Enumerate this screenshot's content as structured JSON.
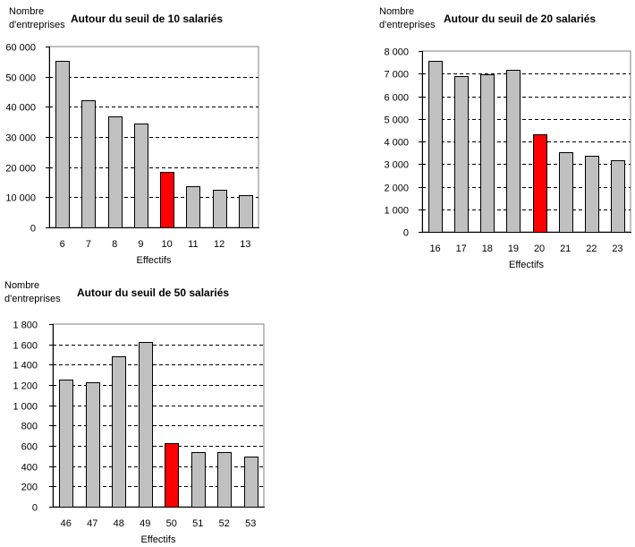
{
  "chart_data": [
    {
      "type": "bar",
      "title": "Autour du seuil de 10 salariés",
      "ylabel": "Nombre d'entreprises",
      "ylabel_lines": [
        "Nombre",
        "d'entreprises"
      ],
      "xlabel": "Effectifs",
      "categories": [
        "6",
        "7",
        "8",
        "9",
        "10",
        "11",
        "12",
        "13"
      ],
      "values": [
        55200,
        42200,
        36800,
        34400,
        18400,
        13600,
        12400,
        10600
      ],
      "highlight_index": 4,
      "ylim": [
        0,
        60000
      ],
      "yticks": [
        0,
        10000,
        20000,
        30000,
        40000,
        50000,
        60000
      ],
      "ytick_labels": [
        "0",
        "10 000",
        "20 000",
        "30 000",
        "40 000",
        "50 000",
        "60 000"
      ],
      "grid": true,
      "colors": {
        "bar": "#c0c0c0",
        "highlight": "#ff0000"
      }
    },
    {
      "type": "bar",
      "title": "Autour du seuil de 20 salariés",
      "ylabel": "Nombre d'entreprises",
      "ylabel_lines": [
        "Nombre",
        "d'entreprises"
      ],
      "xlabel": "Effectifs",
      "categories": [
        "16",
        "17",
        "18",
        "19",
        "20",
        "21",
        "22",
        "23"
      ],
      "values": [
        7580,
        6910,
        6960,
        7180,
        4300,
        3510,
        3350,
        3150
      ],
      "highlight_index": 4,
      "ylim": [
        0,
        8000
      ],
      "yticks": [
        0,
        1000,
        2000,
        3000,
        4000,
        5000,
        6000,
        7000,
        8000
      ],
      "ytick_labels": [
        "0",
        "1 000",
        "2 000",
        "3 000",
        "4 000",
        "5 000",
        "6 000",
        "7 000",
        "8 000"
      ],
      "grid": true,
      "colors": {
        "bar": "#c0c0c0",
        "highlight": "#ff0000"
      }
    },
    {
      "type": "bar",
      "title": "Autour du seuil de 50 salariés",
      "ylabel": "Nombre d'entreprises",
      "ylabel_lines": [
        "Nombre",
        "d'entreprises"
      ],
      "xlabel": "Effectifs",
      "categories": [
        "46",
        "47",
        "48",
        "49",
        "50",
        "51",
        "52",
        "53"
      ],
      "values": [
        1250,
        1230,
        1480,
        1620,
        630,
        535,
        535,
        490
      ],
      "highlight_index": 4,
      "ylim": [
        0,
        1800
      ],
      "yticks": [
        0,
        200,
        400,
        600,
        800,
        1000,
        1200,
        1400,
        1600,
        1800
      ],
      "ytick_labels": [
        "0",
        "200",
        "400",
        "600",
        "800",
        "1 000",
        "1 200",
        "1 400",
        "1 600",
        "1 800"
      ],
      "grid": true,
      "colors": {
        "bar": "#c0c0c0",
        "highlight": "#ff0000"
      }
    }
  ]
}
